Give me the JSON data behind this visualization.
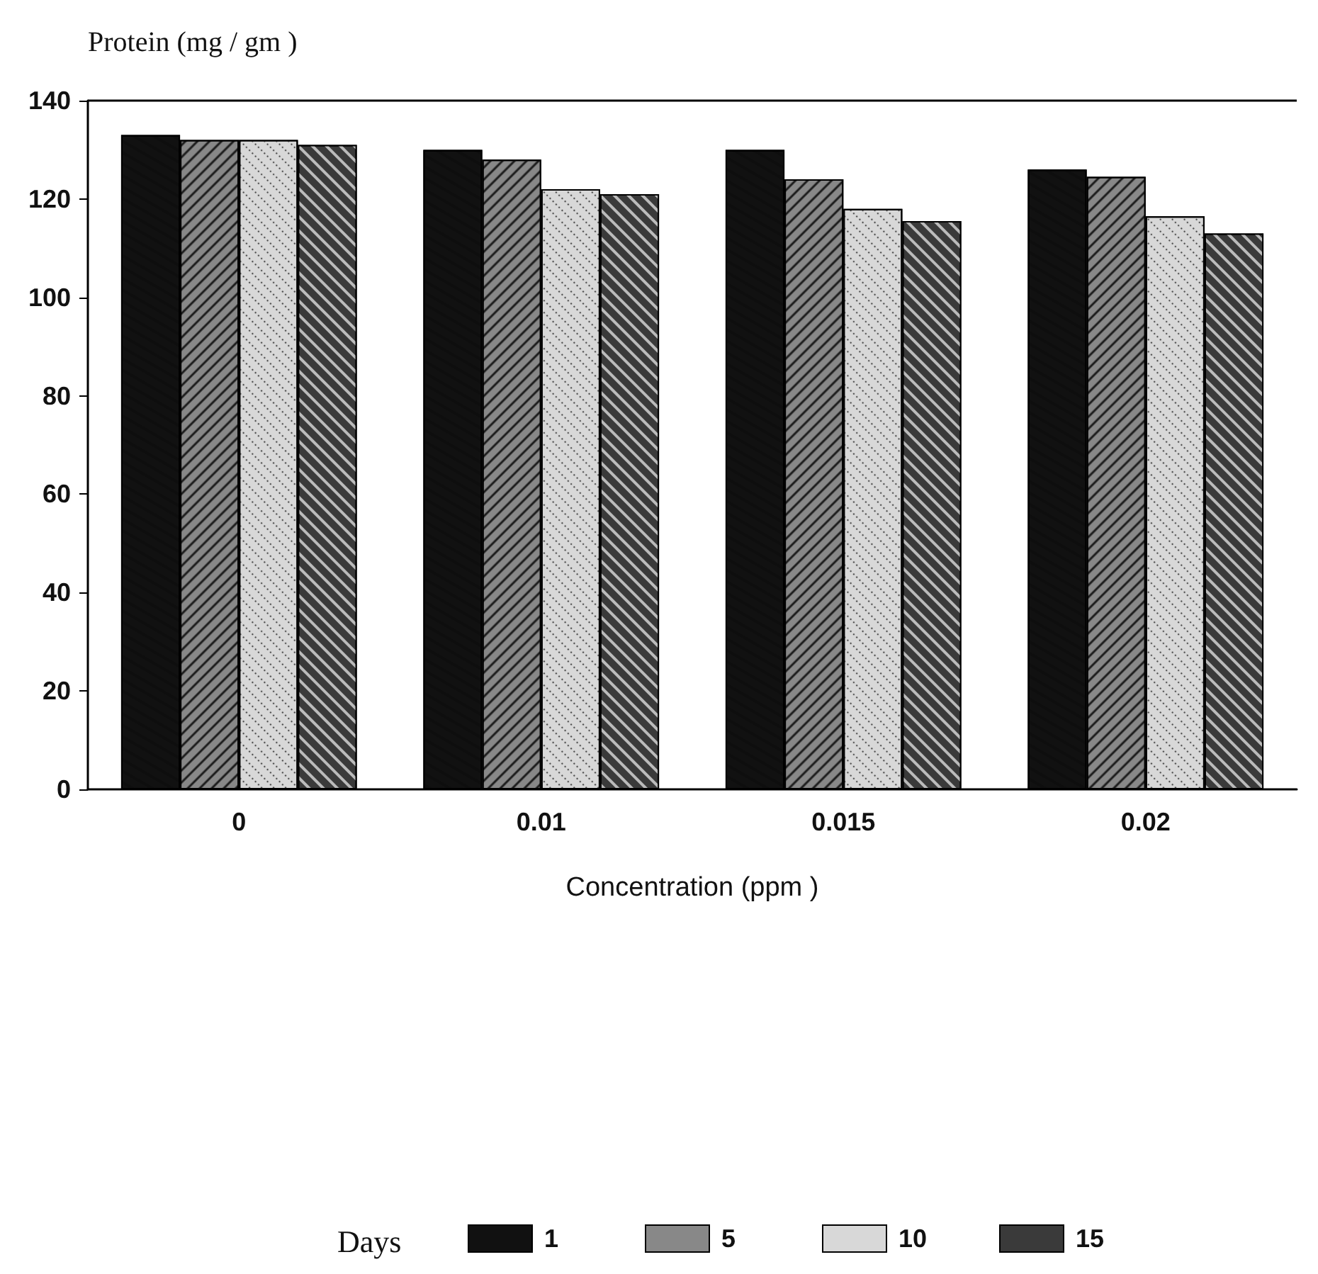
{
  "chart_data": {
    "type": "bar",
    "ylabel": "Protein (mg / gm )",
    "xlabel": "Concentration (ppm )",
    "legend_title": "Days",
    "categories": [
      "0",
      "0.01",
      "0.015",
      "0.02"
    ],
    "series": [
      {
        "name": "1",
        "color": "#111111",
        "values": [
          133,
          130,
          130,
          126
        ]
      },
      {
        "name": "5",
        "color": "#888888",
        "values": [
          132,
          128,
          124,
          124.5
        ]
      },
      {
        "name": "10",
        "color": "#d8d8d8",
        "values": [
          132,
          122,
          118,
          116.5
        ]
      },
      {
        "name": "15",
        "color": "#3a3a3a",
        "values": [
          131,
          121,
          115.5,
          113
        ]
      }
    ],
    "ylim": [
      0,
      140
    ],
    "yticks": [
      0,
      20,
      40,
      60,
      80,
      100,
      120,
      140
    ],
    "grid": false,
    "legend": "bottom"
  }
}
